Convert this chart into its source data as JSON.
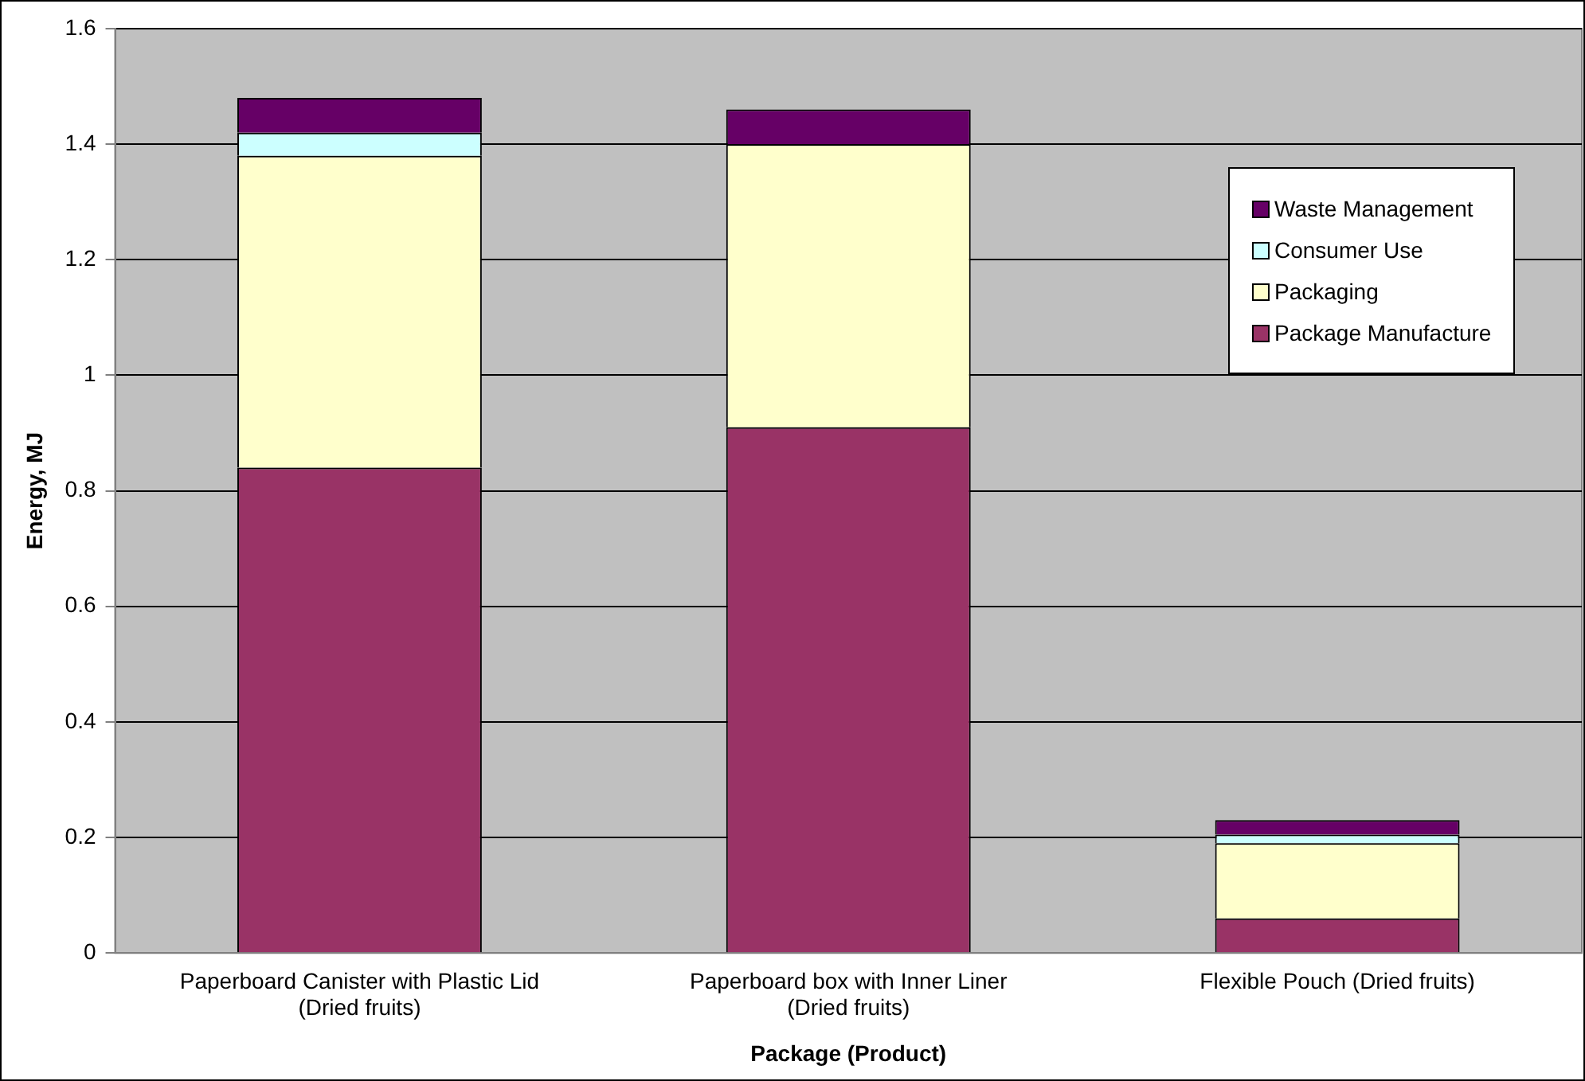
{
  "chart_data": {
    "type": "bar",
    "stacked": true,
    "xlabel": "Package (Product)",
    "ylabel": "Energy, MJ",
    "categories": [
      "Paperboard Canister with Plastic Lid\n(Dried fruits)",
      "Paperboard box with Inner Liner\n(Dried fruits)",
      "Flexible Pouch (Dried fruits)"
    ],
    "series": [
      {
        "name": "Package Manufacture",
        "color": "#993366",
        "values": [
          0.84,
          0.91,
          0.06
        ]
      },
      {
        "name": "Packaging",
        "color": "#ffffcc",
        "values": [
          0.54,
          0.49,
          0.13
        ]
      },
      {
        "name": "Consumer Use",
        "color": "#ccffff",
        "values": [
          0.04,
          0,
          0.015
        ]
      },
      {
        "name": "Waste Management",
        "color": "#660066",
        "values": [
          0.06,
          0.06,
          0.025
        ]
      }
    ],
    "ylim": [
      0,
      1.6
    ],
    "yticks": [
      0,
      0.2,
      0.4,
      0.6,
      0.8,
      1,
      1.2,
      1.4,
      1.6
    ],
    "grid": "y",
    "legend": "right"
  }
}
